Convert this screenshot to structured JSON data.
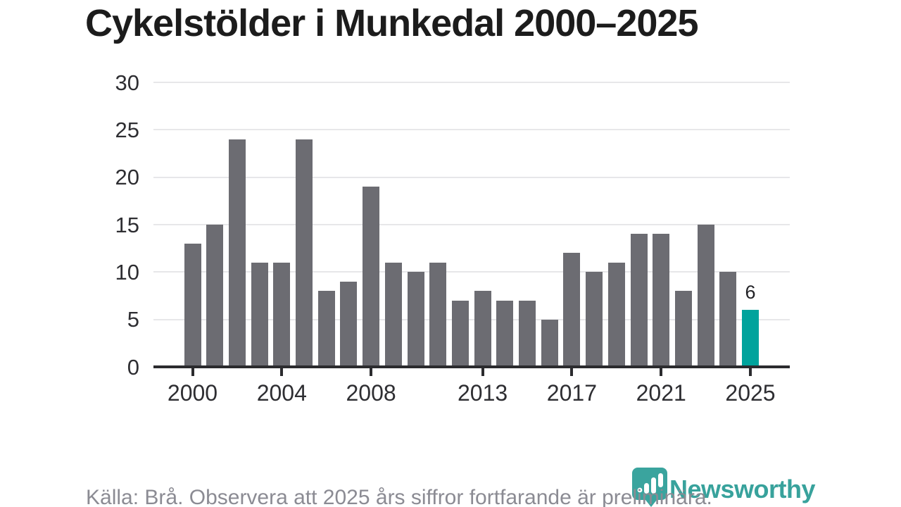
{
  "title": "Cykelstölder i Munkedal 2000–2025",
  "footer": {
    "source_note": "Källa: Brå. Observera att 2025 års siffror fortfarande är preliminära.",
    "brand": "Newsworthy"
  },
  "colors": {
    "bar": "#6c6c72",
    "bar_highlight": "#00a39c",
    "axis": "#2b2b2e",
    "gridline": "#e7e7e9",
    "title_text": "#1c1c1c",
    "tick_text": "#2e2e32",
    "footer_text": "#8b8b93",
    "brand_teal": "#38a29c"
  },
  "chart_data": {
    "type": "bar",
    "title": "Cykelstölder i Munkedal 2000–2025",
    "x": [
      2000,
      2001,
      2002,
      2003,
      2004,
      2005,
      2006,
      2007,
      2008,
      2009,
      2010,
      2011,
      2012,
      2013,
      2014,
      2015,
      2016,
      2017,
      2018,
      2019,
      2020,
      2021,
      2022,
      2023,
      2024,
      2025
    ],
    "values": [
      13,
      15,
      24,
      11,
      11,
      24,
      8,
      9,
      19,
      11,
      10,
      11,
      7,
      8,
      7,
      7,
      5,
      12,
      10,
      11,
      14,
      14,
      8,
      15,
      10,
      6
    ],
    "highlight_year": 2025,
    "highlight_value_label": "6",
    "x_tick_years": [
      2000,
      2004,
      2008,
      2013,
      2017,
      2021,
      2025
    ],
    "x_tick_labels": [
      "2000",
      "2004",
      "2008",
      "2013",
      "2017",
      "2021",
      "2025"
    ],
    "y_ticks": [
      0,
      5,
      10,
      15,
      20,
      25,
      30
    ],
    "ylim": [
      0,
      30
    ],
    "grid": "horizontal",
    "legend": "none"
  }
}
